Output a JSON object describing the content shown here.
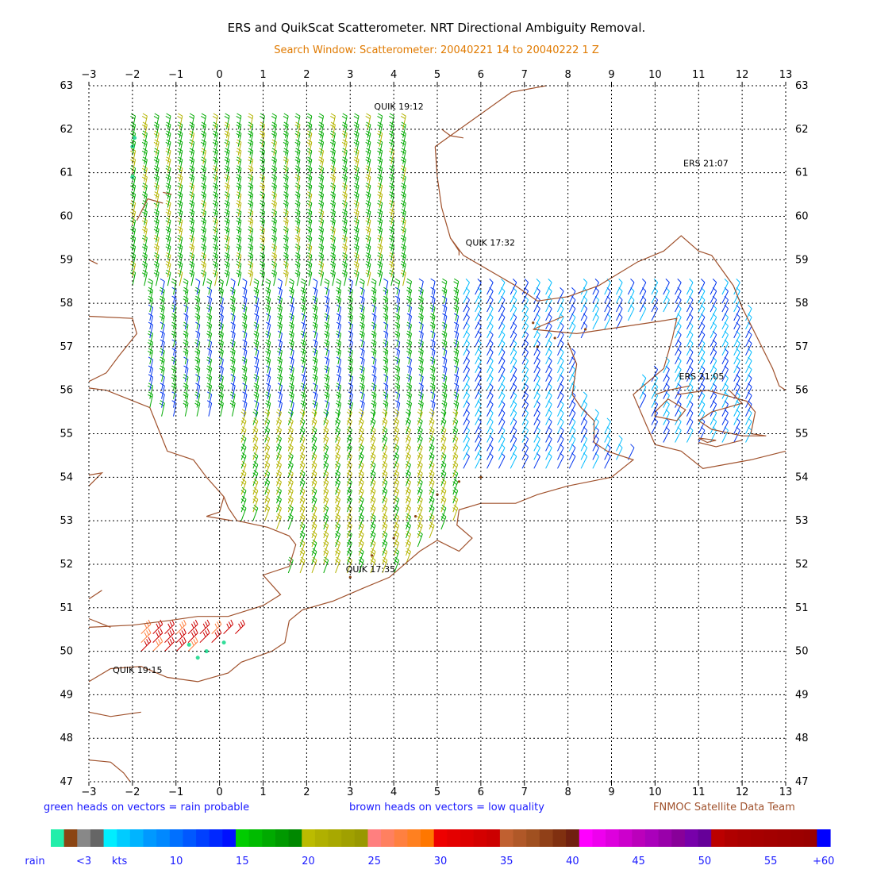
{
  "header": {
    "title": "ERS and QuikScat Scatterometer. NRT Directional Ambiguity Removal.",
    "subtitle": "Search Window: Scatterometer: 20040221 14 to 20040222 1 Z"
  },
  "footer": {
    "rain_note": "green heads on vectors = rain probable",
    "quality_note": "brown heads on vectors = low quality",
    "credit": "FNMOC Satellite Data Team"
  },
  "colors": {
    "coastline": "#a0522d",
    "grid": "#000000",
    "rain_head": "#33dd99",
    "low_quality_head": "#8b4513",
    "subtitle": "#e07a00",
    "legend_text": "#1a1aff"
  },
  "colorbar": {
    "segments": [
      "#22eeaa",
      "#8b4513",
      "#888888",
      "#666666",
      "#00eeff",
      "#00ccff",
      "#00b4ff",
      "#0099ff",
      "#0088ff",
      "#0070ff",
      "#0058ff",
      "#0040ff",
      "#0028ff",
      "#0010ff",
      "#00cc00",
      "#00bb00",
      "#00aa00",
      "#009900",
      "#008800",
      "#bbbb00",
      "#b0b000",
      "#a8a800",
      "#a0a000",
      "#989800",
      "#ff7f7f",
      "#ff8060",
      "#ff8040",
      "#ff8020",
      "#ff7700",
      "#ee0000",
      "#e40000",
      "#dd0000",
      "#d40000",
      "#cc0000",
      "#c06030",
      "#b05828",
      "#a05020",
      "#904018",
      "#803010",
      "#702010",
      "#ff00ff",
      "#ee00ee",
      "#dd00dd",
      "#cc00cc",
      "#bb00bb",
      "#aa00bb",
      "#9900aa",
      "#880099",
      "#7700aa",
      "#660099",
      "#bb0000",
      "#b00000",
      "#aa0000",
      "#a60000",
      "#a30000",
      "#a00000",
      "#9c0000",
      "#990000",
      "#0000ff"
    ],
    "labels": [
      {
        "text": "rain",
        "seg": -1.7
      },
      {
        "text": "<3",
        "seg": 2
      },
      {
        "text": "kts",
        "seg": 4.7
      },
      {
        "text": "10",
        "seg": 9
      },
      {
        "text": "15",
        "seg": 14
      },
      {
        "text": "20",
        "seg": 19
      },
      {
        "text": "25",
        "seg": 24
      },
      {
        "text": "30",
        "seg": 29
      },
      {
        "text": "35",
        "seg": 34
      },
      {
        "text": "40",
        "seg": 39
      },
      {
        "text": "45",
        "seg": 44
      },
      {
        "text": "50",
        "seg": 49
      },
      {
        "text": "55",
        "seg": 54
      },
      {
        "text": "+60",
        "seg": 58
      }
    ]
  },
  "chart_data": {
    "type": "wind-vector map",
    "xlim": [
      -3,
      13
    ],
    "ylim": [
      47,
      63
    ],
    "x_ticks": [
      -3,
      -2,
      -1,
      0,
      1,
      2,
      3,
      4,
      5,
      6,
      7,
      8,
      9,
      10,
      11,
      12,
      13
    ],
    "y_ticks": [
      47,
      48,
      49,
      50,
      51,
      52,
      53,
      54,
      55,
      56,
      57,
      58,
      59,
      60,
      61,
      62,
      63
    ],
    "grid": true,
    "annotations": [
      {
        "text": "QUIK 19:12",
        "lon": 3.55,
        "lat": 62.45
      },
      {
        "text": "ERS 21:07",
        "lon": 10.65,
        "lat": 61.15
      },
      {
        "text": "QUIK 17:32",
        "lon": 5.65,
        "lat": 59.32
      },
      {
        "text": "ERS 21:05",
        "lon": 10.55,
        "lat": 56.25
      },
      {
        "text": "QUIK 17:35",
        "lon": 2.9,
        "lat": 51.82
      },
      {
        "text": "QUIK 19:15",
        "lon": -2.45,
        "lat": 49.5
      }
    ],
    "coastlines": [
      [
        [
          4.95,
          61.6
        ],
        [
          6.7,
          62.85
        ],
        [
          7.5,
          63.0
        ]
      ],
      [
        [
          4.95,
          61.6
        ],
        [
          5.0,
          60.9
        ],
        [
          5.1,
          60.2
        ],
        [
          5.3,
          59.5
        ],
        [
          5.6,
          59.1
        ],
        [
          6.8,
          58.4
        ],
        [
          7.3,
          58.05
        ],
        [
          8.0,
          58.15
        ],
        [
          8.7,
          58.4
        ],
        [
          9.6,
          58.95
        ],
        [
          10.2,
          59.2
        ],
        [
          10.6,
          59.55
        ],
        [
          11.0,
          59.2
        ],
        [
          11.3,
          59.1
        ],
        [
          11.8,
          58.4
        ],
        [
          12.0,
          57.9
        ],
        [
          12.4,
          57.1
        ],
        [
          12.7,
          56.5
        ],
        [
          12.85,
          56.1
        ],
        [
          13.0,
          56.0
        ]
      ],
      [
        [
          5.3,
          59.5
        ],
        [
          5.5,
          59.2
        ],
        [
          5.5,
          59.1
        ]
      ],
      [
        [
          7.9,
          57.7
        ],
        [
          7.2,
          57.4
        ],
        [
          8.2,
          57.3
        ],
        [
          10.2,
          57.6
        ],
        [
          10.5,
          57.65
        ],
        [
          10.4,
          57.2
        ],
        [
          10.2,
          56.5
        ],
        [
          9.5,
          55.9
        ],
        [
          9.8,
          55.2
        ],
        [
          10.0,
          54.75
        ],
        [
          10.6,
          54.6
        ],
        [
          11.1,
          54.2
        ],
        [
          12.2,
          54.4
        ],
        [
          13.0,
          54.6
        ]
      ],
      [
        [
          8.0,
          57.1
        ],
        [
          8.2,
          56.6
        ],
        [
          8.1,
          55.9
        ],
        [
          8.3,
          55.6
        ],
        [
          8.6,
          55.3
        ],
        [
          8.6,
          54.8
        ],
        [
          8.9,
          54.6
        ],
        [
          9.5,
          54.4
        ],
        [
          9.0,
          54.0
        ],
        [
          8.5,
          53.9
        ],
        [
          8.0,
          53.8
        ],
        [
          7.3,
          53.6
        ],
        [
          6.8,
          53.4
        ],
        [
          6.0,
          53.4
        ],
        [
          5.5,
          53.25
        ],
        [
          5.45,
          52.9
        ],
        [
          5.8,
          52.6
        ],
        [
          5.5,
          52.3
        ],
        [
          5.0,
          52.55
        ],
        [
          4.6,
          52.3
        ],
        [
          3.9,
          51.7
        ],
        [
          3.3,
          51.45
        ],
        [
          2.6,
          51.15
        ],
        [
          1.9,
          50.95
        ],
        [
          1.6,
          50.7
        ],
        [
          1.5,
          50.2
        ],
        [
          1.2,
          50.0
        ],
        [
          0.5,
          49.75
        ],
        [
          0.2,
          49.5
        ],
        [
          -0.5,
          49.3
        ],
        [
          -1.2,
          49.4
        ],
        [
          -1.8,
          49.65
        ],
        [
          -2.5,
          49.6
        ],
        [
          -3.0,
          49.3
        ]
      ],
      [
        [
          -3.0,
          48.6
        ],
        [
          -2.5,
          48.5
        ],
        [
          -1.8,
          48.6
        ]
      ],
      [
        [
          -3.0,
          47.5
        ],
        [
          -2.5,
          47.45
        ],
        [
          -2.2,
          47.2
        ],
        [
          -2.05,
          47.0
        ]
      ],
      [
        [
          -3.0,
          57.7
        ],
        [
          -2.0,
          57.65
        ],
        [
          -1.9,
          57.3
        ],
        [
          -2.3,
          56.8
        ],
        [
          -2.6,
          56.4
        ],
        [
          -3.0,
          56.2
        ]
      ],
      [
        [
          -3.0,
          56.05
        ],
        [
          -2.6,
          56.0
        ],
        [
          -1.6,
          55.6
        ],
        [
          -1.4,
          55.1
        ],
        [
          -1.2,
          54.6
        ],
        [
          -0.6,
          54.4
        ],
        [
          -0.3,
          54.0
        ],
        [
          0.1,
          53.55
        ],
        [
          0.2,
          53.3
        ],
        [
          0.4,
          53.0
        ],
        [
          1.1,
          52.85
        ],
        [
          1.6,
          52.65
        ],
        [
          1.75,
          52.45
        ],
        [
          1.6,
          51.95
        ],
        [
          1.0,
          51.75
        ],
        [
          1.4,
          51.3
        ],
        [
          1.0,
          51.05
        ],
        [
          0.2,
          50.8
        ],
        [
          -0.5,
          50.8
        ],
        [
          -1.2,
          50.7
        ],
        [
          -2.0,
          50.6
        ],
        [
          -3.0,
          50.55
        ]
      ],
      [
        [
          -3.0,
          50.75
        ],
        [
          -2.5,
          50.55
        ]
      ],
      [
        [
          0.1,
          53.55
        ],
        [
          0.0,
          53.2
        ],
        [
          -0.3,
          53.1
        ],
        [
          0.3,
          53.0
        ]
      ],
      [
        [
          -3.0,
          51.2
        ],
        [
          -2.7,
          51.4
        ]
      ],
      [
        [
          -3.0,
          54.05
        ],
        [
          -2.7,
          54.1
        ],
        [
          -3.0,
          53.8
        ]
      ],
      [
        [
          -1.9,
          59.9
        ],
        [
          -1.65,
          60.4
        ],
        [
          -1.3,
          60.3
        ]
      ],
      [
        [
          -1.3,
          60.55
        ],
        [
          -1.1,
          60.5
        ]
      ],
      [
        [
          -3.0,
          59.0
        ],
        [
          -2.8,
          58.9
        ]
      ],
      [
        [
          10.0,
          55.5
        ],
        [
          10.3,
          55.8
        ],
        [
          10.7,
          55.55
        ],
        [
          10.5,
          55.3
        ],
        [
          10.0,
          55.4
        ],
        [
          10.0,
          55.5
        ]
      ],
      [
        [
          10.5,
          55.9
        ],
        [
          11.2,
          56.0
        ],
        [
          12.1,
          55.75
        ],
        [
          12.3,
          55.5
        ],
        [
          12.2,
          55.0
        ],
        [
          12.55,
          54.95
        ],
        [
          12.0,
          54.95
        ],
        [
          11.3,
          55.1
        ],
        [
          11.0,
          55.3
        ],
        [
          11.3,
          55.5
        ],
        [
          12.0,
          55.7
        ],
        [
          11.7,
          56.0
        ]
      ],
      [
        [
          10.8,
          56.1
        ],
        [
          10.3,
          56.0
        ],
        [
          10.0,
          55.9
        ]
      ],
      [
        [
          11.0,
          54.9
        ],
        [
          11.4,
          54.85
        ],
        [
          11.2,
          54.8
        ],
        [
          11.0,
          54.9
        ]
      ],
      [
        [
          11.0,
          54.8
        ],
        [
          11.4,
          54.7
        ],
        [
          12.0,
          54.85
        ]
      ],
      [
        [
          5.1,
          62.0
        ],
        [
          5.3,
          61.85
        ],
        [
          5.6,
          61.8
        ]
      ]
    ],
    "wind_regions": [
      {
        "name": "north-west",
        "lon": [
          -2.0,
          4.3
        ],
        "lat": [
          58.4,
          62.1
        ],
        "u": -2,
        "v": -9,
        "speed": 18
      },
      {
        "name": "central",
        "lon": [
          -1.6,
          5.6
        ],
        "lat": [
          55.4,
          58.4
        ],
        "u": -2,
        "v": -9,
        "speed": 16
      },
      {
        "name": "south",
        "lon": [
          0.5,
          5.6
        ],
        "lat": [
          51.8,
          55.4
        ],
        "u": -3,
        "v": -8,
        "speed": 21
      },
      {
        "name": "east-skagerrak",
        "lon": [
          5.6,
          12.1
        ],
        "lat": [
          54.2,
          58.3
        ],
        "u": -4,
        "v": -8,
        "speed": 10
      },
      {
        "name": "english-channel",
        "lon": [
          -1.8,
          0.9
        ],
        "lat": [
          50.0,
          50.5
        ],
        "u": -4,
        "v": -4,
        "speed": 32
      }
    ]
  }
}
